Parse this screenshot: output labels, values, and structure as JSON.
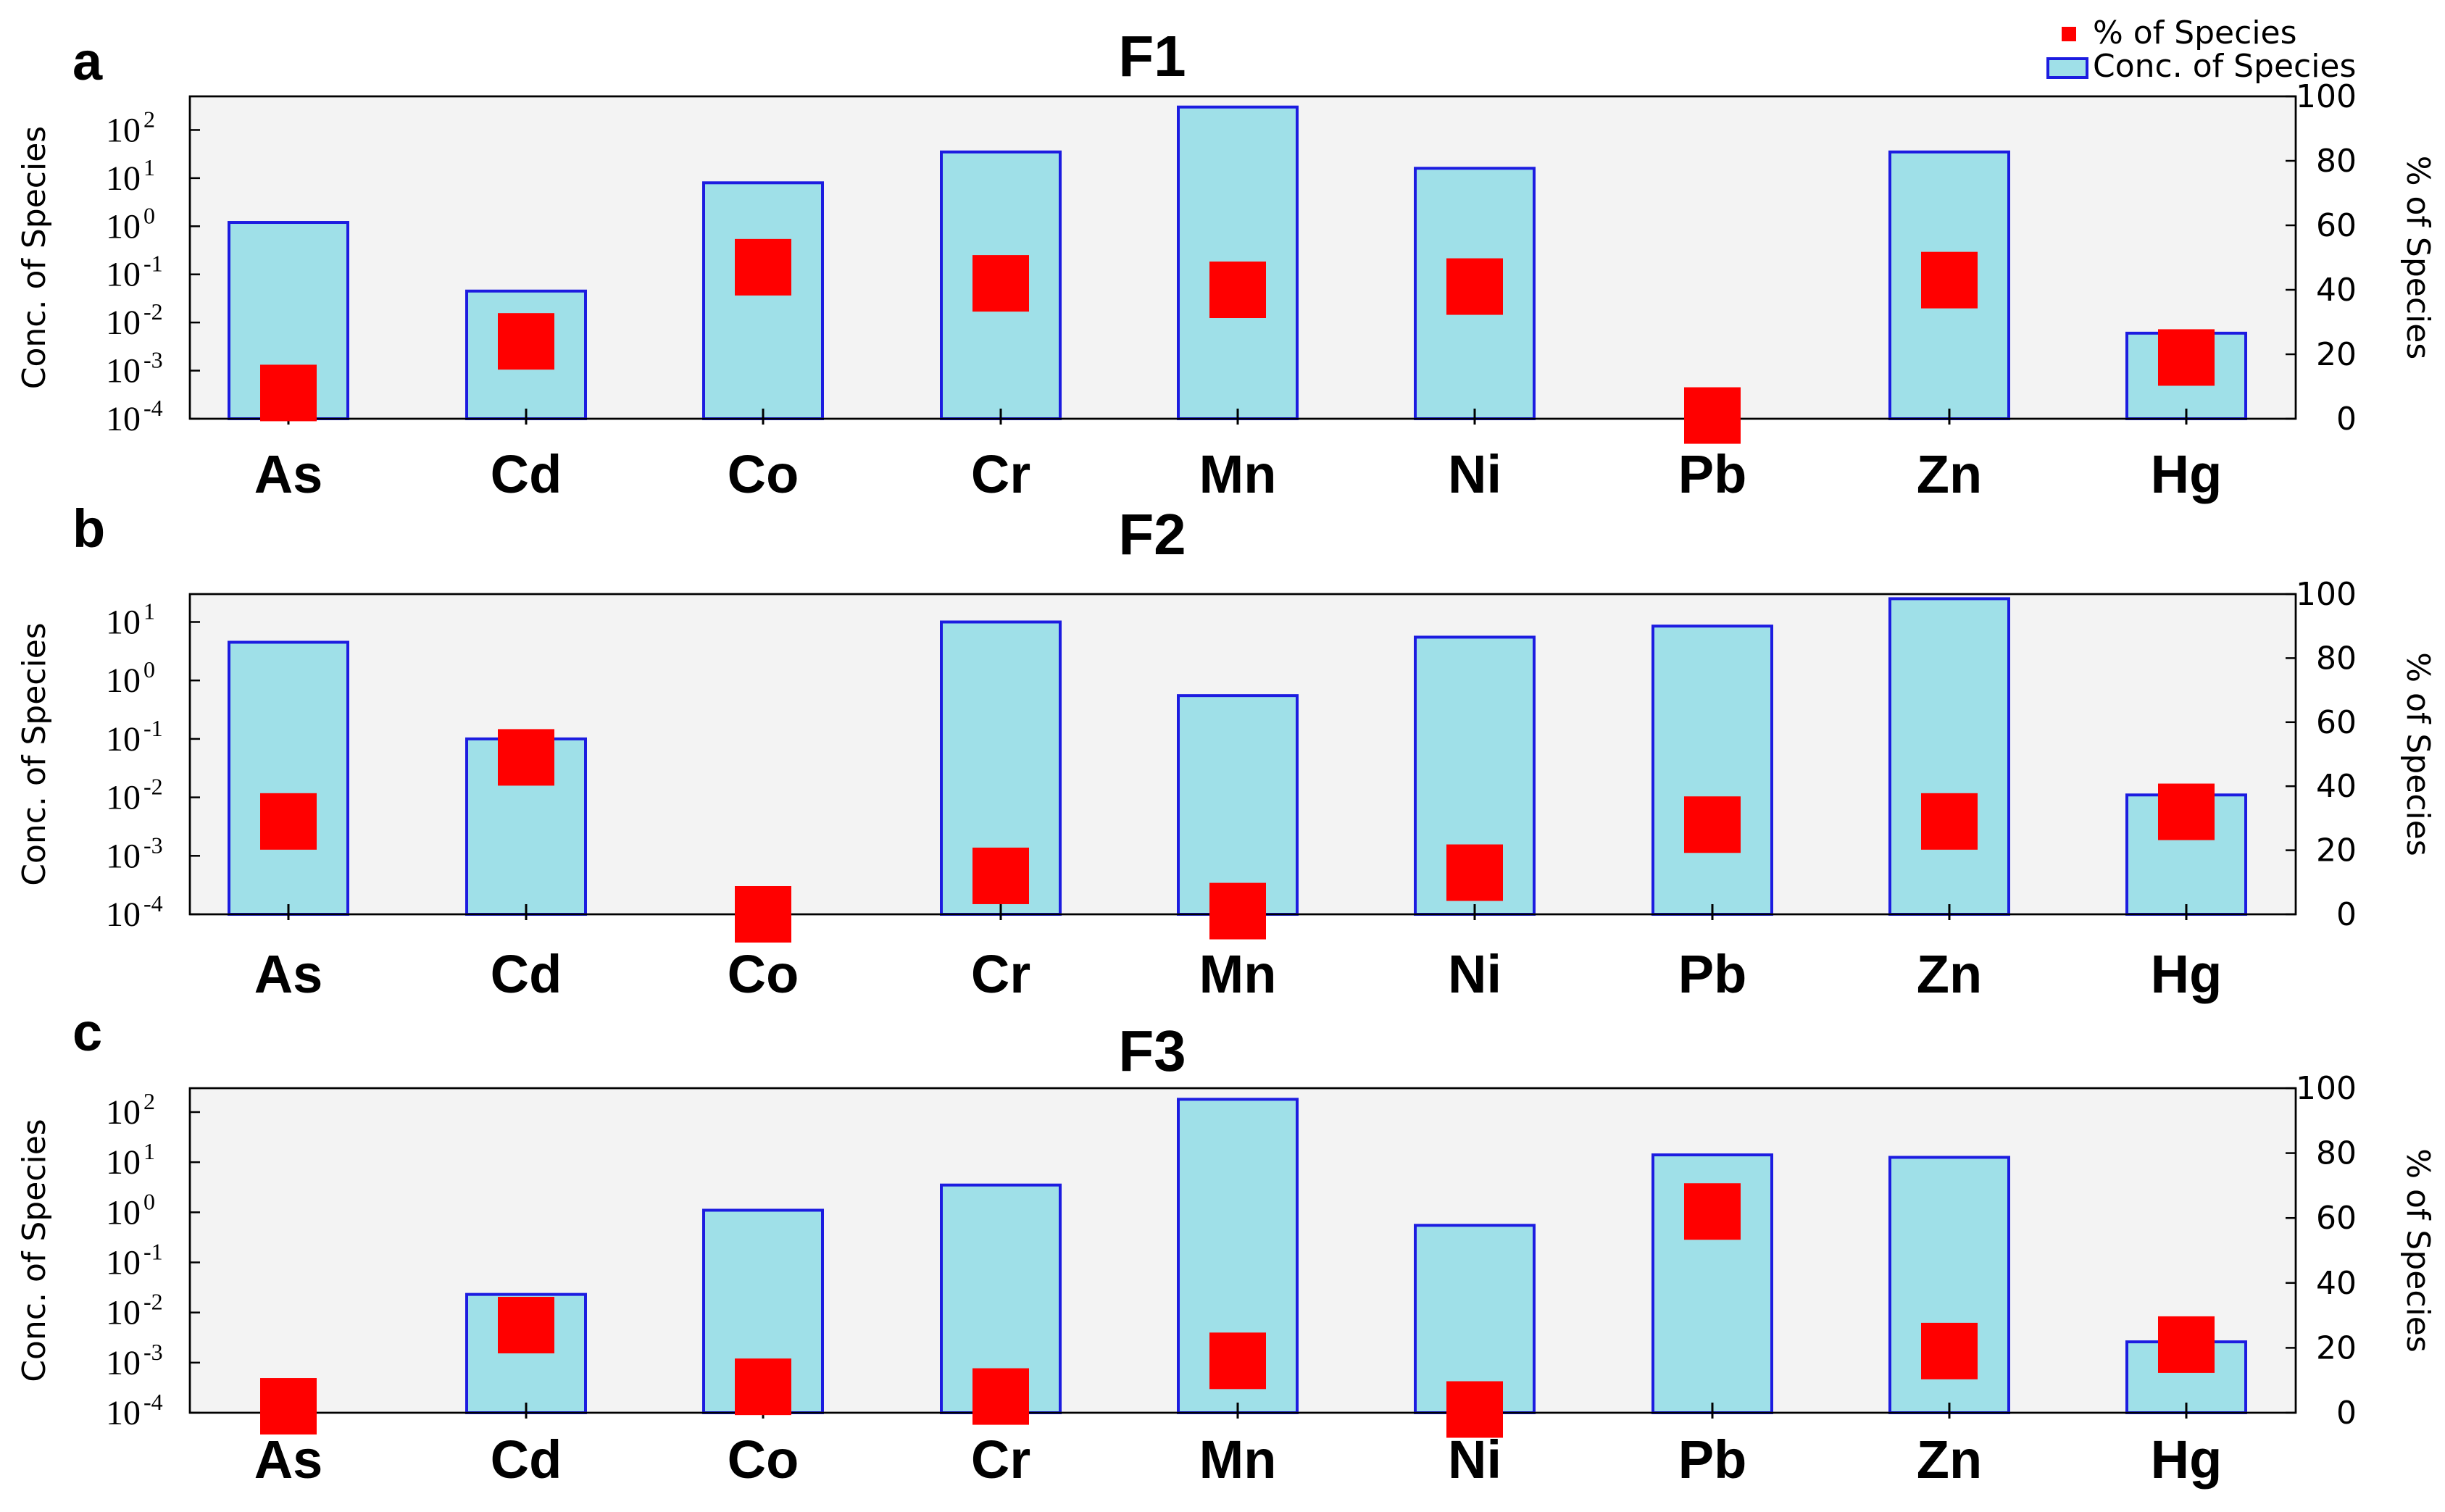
{
  "colors": {
    "bar_fill": "#9fe0e8",
    "bar_edge": "#1c1ce0",
    "marker": "#ff0000",
    "plot_background": "#f3f3f3"
  },
  "legend": {
    "percent_label": "% of Species",
    "conc_label": "Conc. of Species"
  },
  "chart_data": [
    {
      "type": "bar",
      "panel": "a",
      "title": "F1",
      "categories": [
        "As",
        "Cd",
        "Co",
        "Cr",
        "Mn",
        "Ni",
        "Pb",
        "Zn",
        "Hg"
      ],
      "ylabel": "Conc. of Species",
      "y2label": "% of Species",
      "yscale": "log",
      "ylim": [
        0.0001,
        500
      ],
      "y_ticks": [
        {
          "base": "10",
          "exp": "-4",
          "value": 0.0001
        },
        {
          "base": "10",
          "exp": "-3",
          "value": 0.001
        },
        {
          "base": "10",
          "exp": "-2",
          "value": 0.01
        },
        {
          "base": "10",
          "exp": "-1",
          "value": 0.1
        },
        {
          "base": "10",
          "exp": "0",
          "value": 1
        },
        {
          "base": "10",
          "exp": "1",
          "value": 10
        },
        {
          "base": "10",
          "exp": "2",
          "value": 100
        }
      ],
      "y2lim": [
        0,
        100
      ],
      "y2_ticks": [
        0,
        20,
        40,
        60,
        80,
        100
      ],
      "series": [
        {
          "name": "Conc. of Species",
          "kind": "bar",
          "values": [
            1.2,
            0.045,
            8,
            35,
            300,
            16,
            null,
            35,
            0.006
          ]
        },
        {
          "name": "% of Species",
          "kind": "marker",
          "values": [
            8,
            24,
            47,
            42,
            40,
            41,
            1,
            43,
            19
          ]
        }
      ]
    },
    {
      "type": "bar",
      "panel": "b",
      "title": "F2",
      "categories": [
        "As",
        "Cd",
        "Co",
        "Cr",
        "Mn",
        "Ni",
        "Pb",
        "Zn",
        "Hg"
      ],
      "ylabel": "Conc. of Species",
      "y2label": "% of Species",
      "yscale": "log",
      "ylim": [
        0.0001,
        30
      ],
      "y_ticks": [
        {
          "base": "10",
          "exp": "-4",
          "value": 0.0001
        },
        {
          "base": "10",
          "exp": "-3",
          "value": 0.001
        },
        {
          "base": "10",
          "exp": "-2",
          "value": 0.01
        },
        {
          "base": "10",
          "exp": "-1",
          "value": 0.1
        },
        {
          "base": "10",
          "exp": "0",
          "value": 1
        },
        {
          "base": "10",
          "exp": "1",
          "value": 10
        }
      ],
      "y2lim": [
        0,
        100
      ],
      "y2_ticks": [
        0,
        20,
        40,
        60,
        80,
        100
      ],
      "series": [
        {
          "name": "Conc. of Species",
          "kind": "bar",
          "values": [
            4.5,
            0.1,
            null,
            10,
            0.55,
            5.5,
            8.5,
            25,
            0.011
          ]
        },
        {
          "name": "% of Species",
          "kind": "marker",
          "values": [
            29,
            49,
            0,
            12,
            1,
            13,
            28,
            29,
            32
          ]
        }
      ]
    },
    {
      "type": "bar",
      "panel": "c",
      "title": "F3",
      "categories": [
        "As",
        "Cd",
        "Co",
        "Cr",
        "Mn",
        "Ni",
        "Pb",
        "Zn",
        "Hg"
      ],
      "ylabel": "Conc. of Species",
      "y2label": "% of Species",
      "yscale": "log",
      "ylim": [
        0.0001,
        300
      ],
      "y_ticks": [
        {
          "base": "10",
          "exp": "-4",
          "value": 0.0001
        },
        {
          "base": "10",
          "exp": "-3",
          "value": 0.001
        },
        {
          "base": "10",
          "exp": "-2",
          "value": 0.01
        },
        {
          "base": "10",
          "exp": "-1",
          "value": 0.1
        },
        {
          "base": "10",
          "exp": "0",
          "value": 1
        },
        {
          "base": "10",
          "exp": "1",
          "value": 10
        },
        {
          "base": "10",
          "exp": "2",
          "value": 100
        }
      ],
      "y2lim": [
        0,
        100
      ],
      "y2_ticks": [
        0,
        20,
        40,
        60,
        80,
        100
      ],
      "series": [
        {
          "name": "Conc. of Species",
          "kind": "bar",
          "values": [
            null,
            0.023,
            1.1,
            3.5,
            180,
            0.55,
            14,
            12.5,
            0.0026
          ]
        },
        {
          "name": "% of Species",
          "kind": "marker",
          "values": [
            2,
            27,
            8,
            5,
            16,
            1,
            62,
            19,
            21
          ]
        }
      ]
    }
  ]
}
